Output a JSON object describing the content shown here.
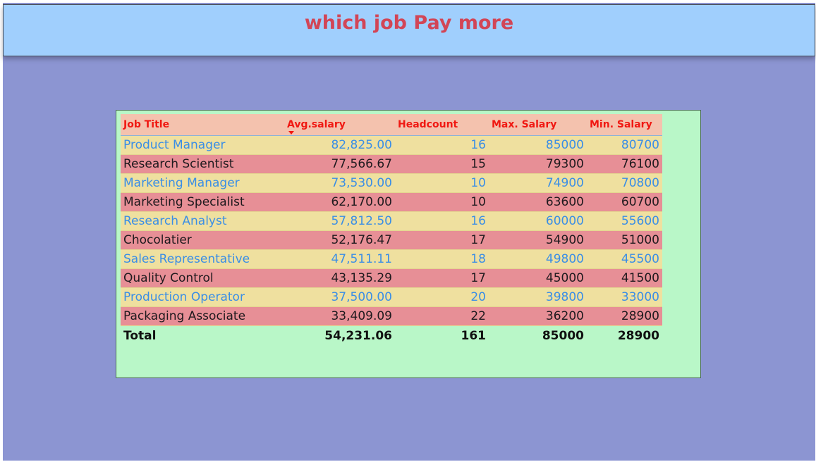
{
  "report": {
    "title": "which job Pay more"
  },
  "table": {
    "headers": {
      "job_title": "Job Title",
      "avg_salary": "Avg.salary",
      "headcount": "Headcount",
      "max_salary": "Max. Salary",
      "min_salary": "Min. Salary"
    },
    "sorted_by": "Avg.salary",
    "sort_direction": "descending",
    "rows": [
      {
        "job_title": "Product Manager",
        "avg_salary": "82,825.00",
        "headcount": "16",
        "max_salary": "85000",
        "min_salary": "80700"
      },
      {
        "job_title": "Research Scientist",
        "avg_salary": "77,566.67",
        "headcount": "15",
        "max_salary": "79300",
        "min_salary": "76100"
      },
      {
        "job_title": "Marketing Manager",
        "avg_salary": "73,530.00",
        "headcount": "10",
        "max_salary": "74900",
        "min_salary": "70800"
      },
      {
        "job_title": "Marketing Specialist",
        "avg_salary": "62,170.00",
        "headcount": "10",
        "max_salary": "63600",
        "min_salary": "60700"
      },
      {
        "job_title": "Research Analyst",
        "avg_salary": "57,812.50",
        "headcount": "16",
        "max_salary": "60000",
        "min_salary": "55600"
      },
      {
        "job_title": "Chocolatier",
        "avg_salary": "52,176.47",
        "headcount": "17",
        "max_salary": "54900",
        "min_salary": "51000"
      },
      {
        "job_title": "Sales Representative",
        "avg_salary": "47,511.11",
        "headcount": "18",
        "max_salary": "49800",
        "min_salary": "45500"
      },
      {
        "job_title": "Quality Control",
        "avg_salary": "43,135.29",
        "headcount": "17",
        "max_salary": "45000",
        "min_salary": "41500"
      },
      {
        "job_title": "Production Operator",
        "avg_salary": "37,500.00",
        "headcount": "20",
        "max_salary": "39800",
        "min_salary": "33000"
      },
      {
        "job_title": "Packaging Associate",
        "avg_salary": "33,409.09",
        "headcount": "22",
        "max_salary": "36200",
        "min_salary": "28900"
      }
    ],
    "total": {
      "label": "Total",
      "avg_salary": "54,231.06",
      "headcount": "161",
      "max_salary": "85000",
      "min_salary": "28900"
    }
  },
  "colors": {
    "canvas_background": "#8c95d2",
    "title_bar_background": "#a0cffd",
    "title_text": "#d24556",
    "table_card_background": "#b9f7c8",
    "header_background": "#f4c2ae",
    "header_text": "#f01812",
    "odd_row_background": "#efe09f",
    "odd_row_text": "#3a8ee6",
    "even_row_background": "#e78f96",
    "even_row_text": "#1f1a1e"
  },
  "icons": {
    "sort": "sort-descending-icon"
  }
}
